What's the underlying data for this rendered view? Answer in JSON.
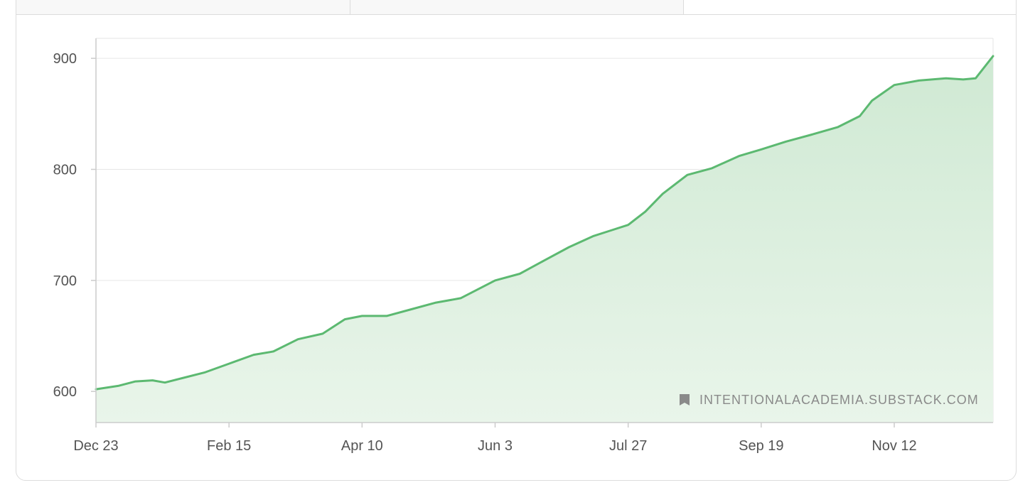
{
  "colors": {
    "line": "#5cb971",
    "fill_top": "#cfe9d3",
    "fill_bottom": "#e9f5ea",
    "grid": "#e6e6e6",
    "axis": "#cccccc",
    "text": "#545454",
    "watermark": "#8a8a8a"
  },
  "watermark": {
    "icon": "bookmark-icon",
    "text": "INTENTIONALACADEMIA.SUBSTACK.COM"
  },
  "chart_data": {
    "type": "area",
    "title": "",
    "xlabel": "",
    "ylabel": "",
    "ylim": [
      572,
      918
    ],
    "yticks": [
      600,
      700,
      800,
      900
    ],
    "ytick_labels": [
      "600",
      "700",
      "800",
      "900"
    ],
    "xtick_labels": [
      "Dec 23",
      "Feb 15",
      "Apr 10",
      "Jun 3",
      "Jul 27",
      "Sep 19",
      "Nov 12"
    ],
    "grid": true,
    "legend": "none",
    "x": [
      "Dec 23",
      "Jan 1",
      "Jan 8",
      "Jan 15",
      "Jan 20",
      "Jan 27",
      "Feb 5",
      "Feb 15",
      "Feb 25",
      "Mar 5",
      "Mar 15",
      "Mar 25",
      "Apr 3",
      "Apr 10",
      "Apr 20",
      "Apr 30",
      "May 10",
      "May 20",
      "Jun 3",
      "Jun 13",
      "Jun 23",
      "Jul 3",
      "Jul 13",
      "Jul 20",
      "Jul 27",
      "Aug 3",
      "Aug 10",
      "Aug 20",
      "Aug 30",
      "Sep 10",
      "Sep 19",
      "Sep 29",
      "Oct 9",
      "Oct 20",
      "Oct 29",
      "Nov 3",
      "Nov 12",
      "Nov 22",
      "Dec 3",
      "Dec 10",
      "Dec 15",
      "Dec 20"
    ],
    "series": [
      {
        "values": [
          602,
          605,
          609,
          610,
          608,
          612,
          617,
          625,
          633,
          636,
          647,
          652,
          665,
          668,
          668,
          674,
          680,
          684,
          700,
          706,
          718,
          730,
          740,
          745,
          750,
          762,
          778,
          795,
          801,
          812,
          818,
          825,
          831,
          838,
          848,
          862,
          876,
          880,
          882,
          881,
          882,
          902
        ]
      }
    ]
  }
}
